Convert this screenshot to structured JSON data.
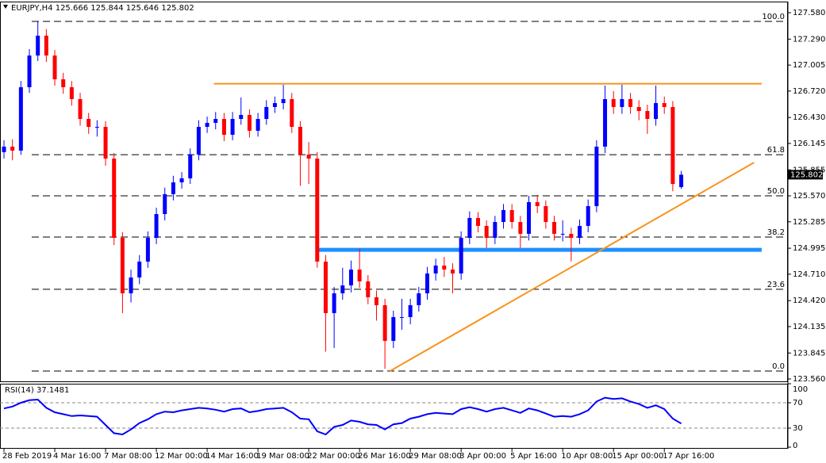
{
  "chart_data": {
    "type": "candlestick",
    "symbol": "EURJPY,H4",
    "up_color": "#0000ff",
    "down_color": "#ff0000",
    "xlim": [
      -0.47,
      92.6
    ],
    "xticks": [
      {
        "value": 0,
        "label": "28 Feb 2019"
      },
      {
        "value": 6,
        "label": "4 Mar 16:00"
      },
      {
        "value": 12,
        "label": "7 Mar 08:00"
      },
      {
        "value": 18,
        "label": "12 Mar 00:00"
      },
      {
        "value": 24,
        "label": "14 Mar 16:00"
      },
      {
        "value": 30,
        "label": "19 Mar 08:00"
      },
      {
        "value": 36,
        "label": "22 Mar 00:00"
      },
      {
        "value": 42,
        "label": "26 Mar 16:00"
      },
      {
        "value": 48,
        "label": "29 Mar 08:00"
      },
      {
        "value": 54,
        "label": "3 Apr 00:00"
      },
      {
        "value": 60,
        "label": "5 Apr 16:00"
      },
      {
        "value": 66,
        "label": "10 Apr 08:00"
      },
      {
        "value": 72,
        "label": "15 Apr 00:00"
      },
      {
        "value": 78,
        "label": "17 Apr 16:00"
      }
    ],
    "ylim": [
      123.534,
      127.702
    ],
    "yticks": [
      {
        "value": 127.58,
        "label": "127.580"
      },
      {
        "value": 127.29,
        "label": "127.290"
      },
      {
        "value": 127.005,
        "label": "127.005"
      },
      {
        "value": 126.72,
        "label": "126.720"
      },
      {
        "value": 126.43,
        "label": "126.430"
      },
      {
        "value": 126.145,
        "label": "126.145"
      },
      {
        "value": 125.855,
        "label": "125.855"
      },
      {
        "value": 125.57,
        "label": "125.570"
      },
      {
        "value": 125.285,
        "label": "125.285"
      },
      {
        "value": 124.995,
        "label": "124.995"
      },
      {
        "value": 124.71,
        "label": "124.710"
      },
      {
        "value": 124.42,
        "label": "124.420"
      },
      {
        "value": 124.135,
        "label": "124.135"
      },
      {
        "value": 123.845,
        "label": "123.845"
      },
      {
        "value": 123.56,
        "label": "123.560"
      }
    ],
    "open": [
      126.05,
      126.11,
      126.066,
      126.762,
      127.11,
      127.328,
      127.11,
      126.849,
      126.762,
      126.632,
      126.414,
      126.327,
      126.327,
      125.979,
      125.109,
      124.5,
      124.674,
      124.848,
      125.109,
      125.37,
      125.588,
      125.718,
      125.762,
      126.023,
      126.327,
      126.371,
      126.414,
      126.24,
      126.414,
      126.458,
      126.284,
      126.414,
      126.545,
      126.588,
      126.632,
      126.327,
      126.023,
      125.979,
      124.848,
      124.283,
      124.5,
      124.587,
      124.761,
      124.631,
      124.457,
      124.37,
      123.978,
      124.239,
      124.239,
      124.37,
      124.5,
      124.718,
      124.805,
      124.761,
      124.718,
      125.109,
      125.327,
      125.24,
      125.109,
      125.283,
      125.414,
      125.283,
      125.153,
      125.501,
      125.457,
      125.283,
      125.153,
      125.153,
      125.109,
      125.24,
      125.457,
      126.11,
      126.632,
      126.545,
      126.632,
      126.545,
      126.501,
      126.414,
      126.588,
      126.545,
      125.666
    ],
    "high": [
      126.18,
      126.19,
      126.83,
      127.18,
      127.484,
      127.4,
      127.17,
      126.92,
      126.83,
      126.7,
      126.48,
      126.4,
      126.39,
      126.04,
      125.17,
      124.76,
      124.92,
      125.18,
      125.44,
      125.66,
      125.79,
      125.83,
      126.09,
      126.4,
      126.44,
      126.49,
      126.48,
      126.49,
      126.65,
      126.52,
      126.48,
      126.62,
      126.66,
      126.79,
      126.7,
      126.39,
      126.16,
      126.05,
      124.92,
      124.57,
      124.78,
      124.86,
      124.99,
      124.7,
      124.53,
      124.44,
      124.31,
      124.44,
      124.44,
      124.57,
      124.79,
      124.88,
      124.9,
      124.83,
      125.18,
      125.4,
      125.39,
      125.3,
      125.35,
      125.48,
      125.48,
      125.35,
      125.57,
      125.58,
      125.52,
      125.35,
      125.3,
      125.22,
      125.31,
      125.53,
      126.18,
      126.78,
      126.72,
      126.79,
      126.7,
      126.62,
      126.57,
      126.78,
      126.66,
      126.61,
      125.844
    ],
    "low": [
      125.98,
      125.96,
      126.02,
      126.7,
      127.05,
      127.04,
      126.78,
      126.69,
      126.56,
      126.34,
      126.25,
      126.22,
      125.9,
      125.03,
      124.283,
      124.4,
      124.6,
      124.78,
      125.04,
      125.3,
      125.52,
      125.65,
      125.7,
      125.96,
      126.26,
      126.3,
      126.17,
      126.18,
      126.35,
      126.21,
      126.22,
      126.35,
      126.48,
      126.52,
      126.26,
      125.68,
      125.7,
      124.78,
      123.86,
      123.9,
      124.43,
      124.51,
      124.56,
      124.38,
      124.2,
      123.673,
      123.9,
      124.1,
      124.16,
      124.3,
      124.43,
      124.64,
      124.68,
      124.5,
      124.65,
      125.04,
      125.17,
      125.0,
      125.04,
      125.21,
      125.21,
      125.0,
      125.08,
      125.38,
      125.21,
      125.08,
      125.07,
      124.85,
      125.04,
      125.17,
      125.39,
      126.04,
      126.47,
      126.47,
      126.47,
      126.4,
      126.25,
      126.34,
      126.47,
      125.62,
      125.646
    ],
    "close": [
      126.11,
      126.066,
      126.762,
      127.11,
      127.328,
      127.11,
      126.849,
      126.762,
      126.632,
      126.414,
      126.327,
      126.327,
      125.979,
      125.109,
      124.5,
      124.674,
      124.848,
      125.109,
      125.37,
      125.588,
      125.718,
      125.762,
      126.023,
      126.327,
      126.371,
      126.414,
      126.24,
      126.414,
      126.458,
      126.284,
      126.414,
      126.545,
      126.588,
      126.632,
      126.327,
      126.023,
      125.979,
      124.848,
      124.283,
      124.5,
      124.587,
      124.761,
      124.631,
      124.457,
      124.37,
      123.978,
      124.239,
      124.239,
      124.37,
      124.5,
      124.718,
      124.805,
      124.761,
      124.718,
      125.109,
      125.327,
      125.24,
      125.109,
      125.283,
      125.414,
      125.283,
      125.153,
      125.501,
      125.457,
      125.283,
      125.153,
      125.153,
      125.109,
      125.24,
      125.457,
      126.11,
      126.632,
      126.545,
      126.632,
      126.545,
      126.501,
      126.414,
      126.588,
      126.545,
      125.7,
      125.802
    ],
    "fib_levels": [
      {
        "value": 127.484,
        "label": "100.0"
      },
      {
        "value": 126.022,
        "label": "61.8"
      },
      {
        "value": 125.57,
        "label": "50.0"
      },
      {
        "value": 125.118,
        "label": "38.2"
      },
      {
        "value": 124.544,
        "label": "23.6"
      },
      {
        "value": 123.647,
        "label": "0.0"
      }
    ],
    "fib_color": "#000000",
    "drawn_lines": [
      {
        "x": [
          24.8,
          89.5
        ],
        "y": [
          126.8,
          126.8
        ],
        "color": "#f7941d",
        "width": 2
      },
      {
        "x": [
          37.0,
          89.5
        ],
        "y": [
          124.977,
          124.977
        ],
        "color": "#1e90ff",
        "width": 5
      },
      {
        "x": [
          45.6,
          88.6
        ],
        "y": [
          123.647,
          125.936
        ],
        "color": "#f7941d",
        "width": 2
      }
    ],
    "rsi": {
      "name": "RSI(14)",
      "color": "#0000ff",
      "ylim": [
        0,
        100
      ],
      "yticks": [
        100,
        70,
        30,
        0
      ],
      "values": [
        61,
        64,
        70,
        74,
        75,
        62,
        55,
        52,
        49,
        50,
        49,
        48,
        35,
        22,
        20,
        28,
        38,
        44,
        52,
        56,
        55,
        58,
        60,
        62,
        61,
        59,
        56,
        60,
        61,
        55,
        57,
        60,
        61,
        62,
        55,
        45,
        44,
        25,
        20,
        32,
        35,
        42,
        40,
        36,
        35,
        28,
        36,
        38,
        45,
        48,
        52,
        54,
        53,
        52,
        60,
        63,
        60,
        56,
        60,
        62,
        58,
        54,
        61,
        58,
        53,
        48,
        49,
        48,
        52,
        58,
        72,
        78,
        76,
        77,
        72,
        68,
        62,
        66,
        60,
        45,
        37.1481
      ]
    }
  }
}
